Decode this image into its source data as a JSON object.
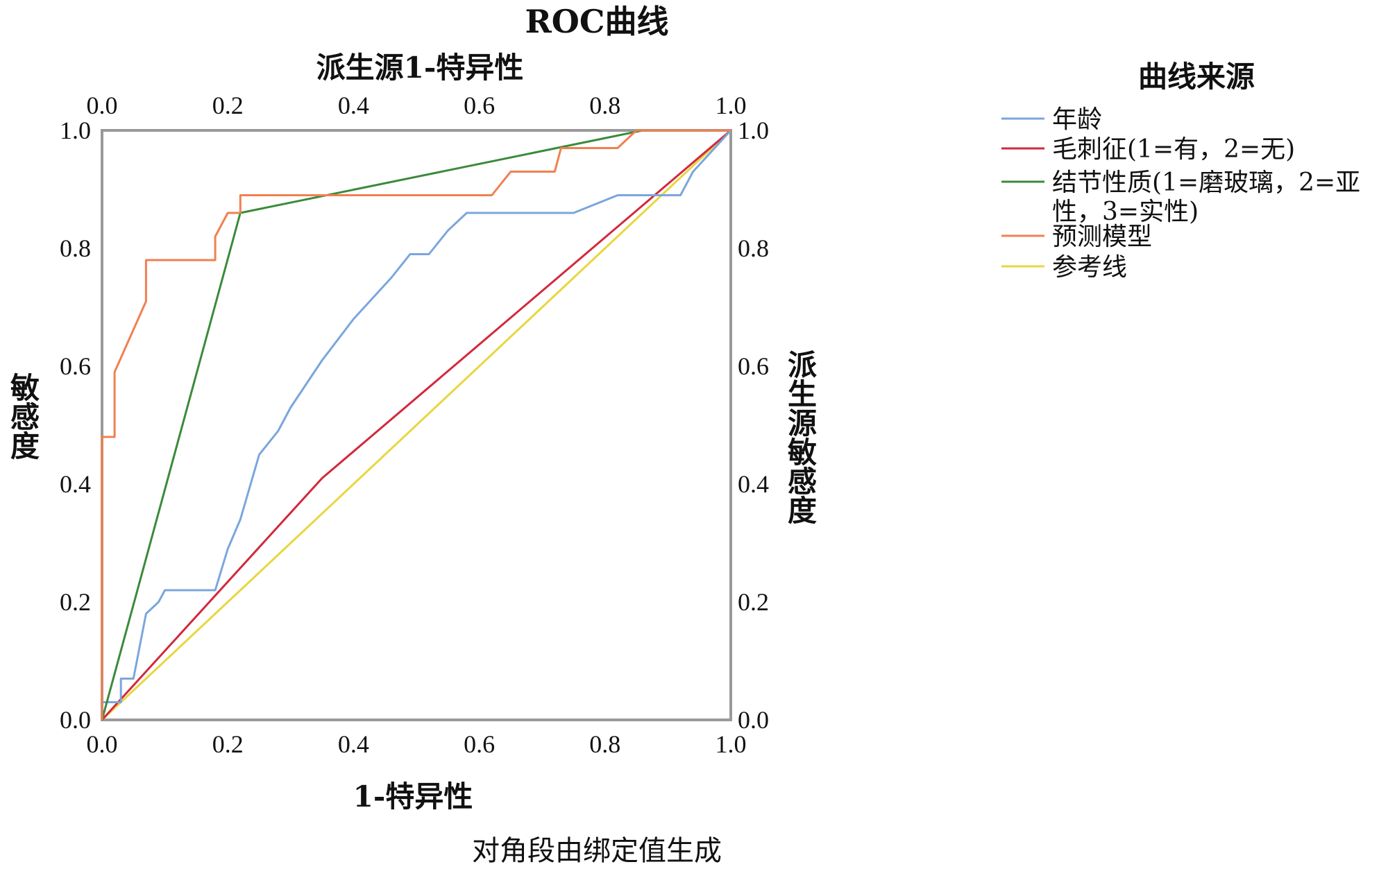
{
  "chart_data": {
    "type": "line",
    "title": "ROC曲线",
    "xlabel": "1-特异性",
    "ylabel": "敏感度",
    "x2label": "派生源1-特异性",
    "y2label": "派生源敏感度",
    "footnote": "对角段由绑定值生成",
    "xlim": [
      0,
      1
    ],
    "ylim": [
      0,
      1
    ],
    "grid": false,
    "xticks": [
      "0.0",
      "0.2",
      "0.4",
      "0.6",
      "0.8",
      "1.0"
    ],
    "yticks": [
      "0.0",
      "0.2",
      "0.4",
      "0.6",
      "0.8",
      "1.0"
    ],
    "legend": {
      "title": "曲线来源",
      "placement": "right"
    },
    "series": [
      {
        "name": "年龄",
        "color": "#7aa6dc",
        "x": [
          0,
          0,
          0.03,
          0.03,
          0.05,
          0.07,
          0.07,
          0.09,
          0.1,
          0.18,
          0.2,
          0.22,
          0.25,
          0.28,
          0.3,
          0.35,
          0.4,
          0.46,
          0.49,
          0.52,
          0.55,
          0.58,
          0.75,
          0.82,
          0.92,
          0.94,
          1
        ],
        "y": [
          0,
          0.03,
          0.03,
          0.07,
          0.07,
          0.18,
          0.18,
          0.2,
          0.22,
          0.22,
          0.29,
          0.34,
          0.45,
          0.49,
          0.53,
          0.61,
          0.68,
          0.75,
          0.79,
          0.79,
          0.83,
          0.86,
          0.86,
          0.89,
          0.89,
          0.93,
          1
        ]
      },
      {
        "name": "毛刺征(1=有，2=无)",
        "color": "#d2283c",
        "x": [
          0,
          0.35,
          1
        ],
        "y": [
          0,
          0.41,
          1
        ]
      },
      {
        "name": "结节性质(1=磨玻璃，2=亚性，3=实性)",
        "color": "#3a8a3a",
        "x": [
          0,
          0.22,
          0.86,
          1
        ],
        "y": [
          0,
          0.86,
          1,
          1
        ]
      },
      {
        "name": "预测模型",
        "color": "#f08050",
        "x": [
          0,
          0,
          0.02,
          0.02,
          0.07,
          0.07,
          0.18,
          0.18,
          0.2,
          0.22,
          0.22,
          0.62,
          0.65,
          0.72,
          0.73,
          0.82,
          0.85,
          1
        ],
        "y": [
          0,
          0.48,
          0.48,
          0.59,
          0.71,
          0.78,
          0.78,
          0.82,
          0.86,
          0.86,
          0.89,
          0.89,
          0.93,
          0.93,
          0.97,
          0.97,
          1,
          1
        ]
      },
      {
        "name": "参考线",
        "color": "#e8d640",
        "x": [
          0,
          1
        ],
        "y": [
          0,
          1
        ]
      }
    ]
  }
}
